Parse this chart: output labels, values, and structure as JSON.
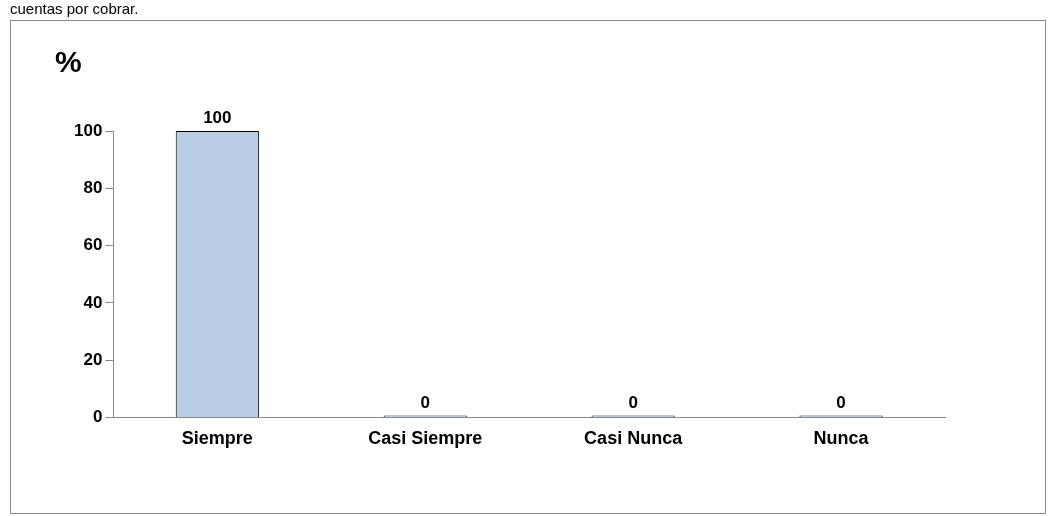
{
  "chart_data": {
    "type": "bar",
    "title": "cuentas por cobrar.",
    "ylabel": "%",
    "categories": [
      "Siempre",
      "Casi Siempre",
      "Casi Nunca",
      "Nunca"
    ],
    "values": [
      100,
      0,
      0,
      0
    ],
    "color": "#b9cde5",
    "ylim": [
      0,
      100
    ],
    "yticks": [
      0,
      20,
      40,
      60,
      80,
      100
    ],
    "grid": false,
    "legend": false,
    "data_labels": true
  }
}
